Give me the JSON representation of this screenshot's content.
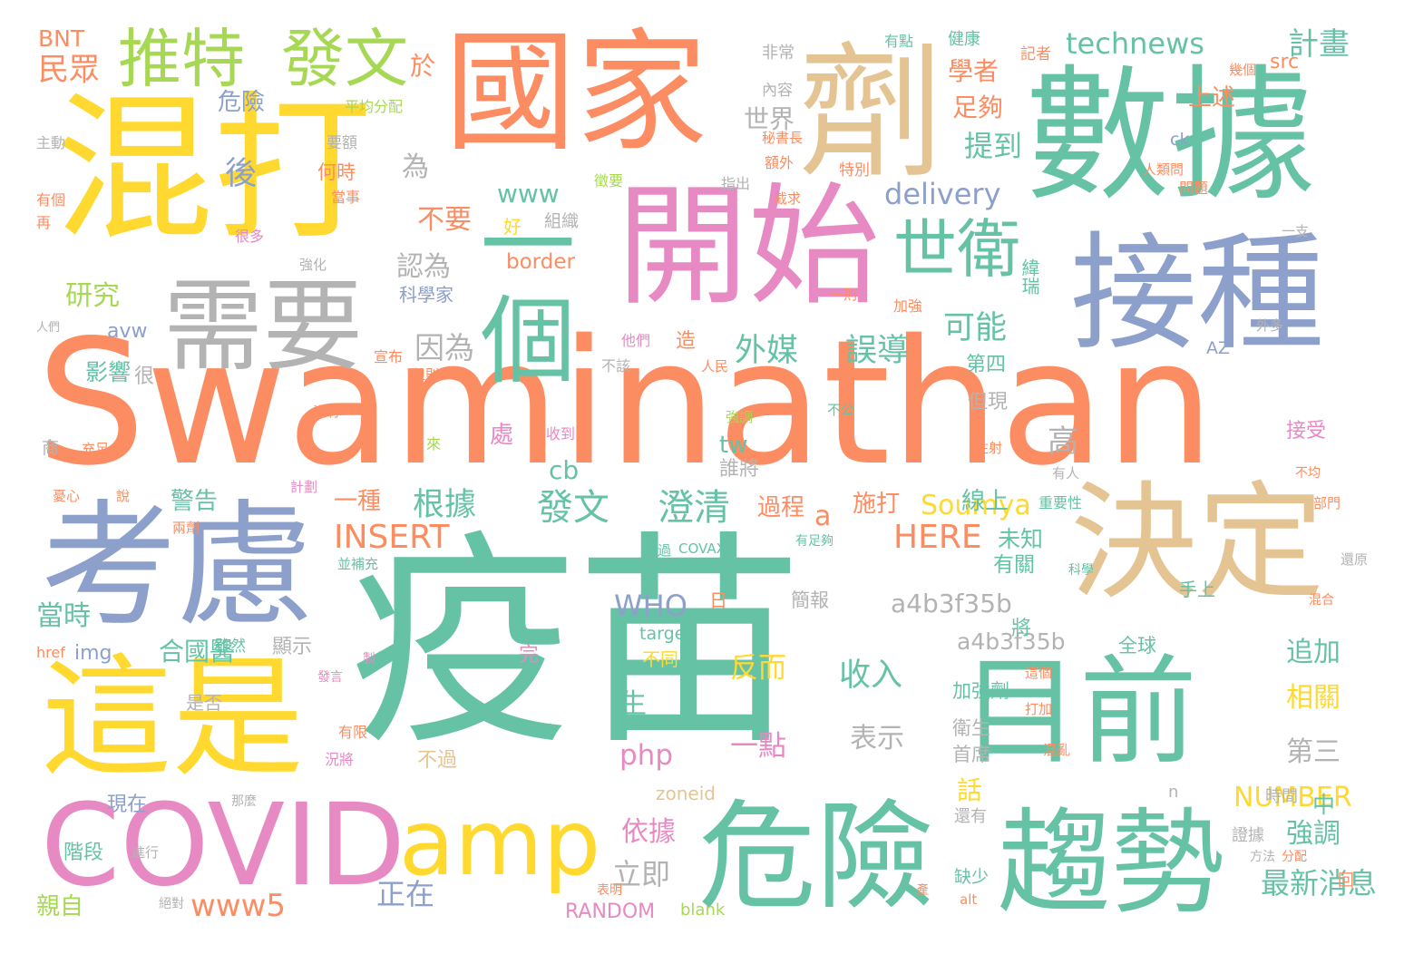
{
  "palette": {
    "green": "#66c2a5",
    "orange": "#fc8d62",
    "blue": "#8da0cb",
    "pink": "#e78ac3",
    "lime": "#a6d854",
    "yellow": "#ffd92f",
    "tan": "#e5c494",
    "gray": "#b3b3b3"
  },
  "words": [
    "Swaminathan",
    "疫苗",
    "國家",
    "數據",
    "混打",
    "開始",
    "接種",
    "一個",
    "考慮",
    "劑",
    "決定",
    "目前",
    "這是",
    "趨勢",
    "危險",
    "COVID",
    "需要",
    "amp",
    "世衛",
    "推特",
    "發文",
    "technews",
    "計畫",
    "民眾",
    "BNT",
    "於",
    "平均分配",
    "學者",
    "足夠",
    "上述",
    "src",
    "有點",
    "健康",
    "記者",
    "非常",
    "內容",
    "秘書長",
    "額外",
    "特別",
    "主動",
    "要額",
    "何時",
    "當事",
    "有個",
    "再",
    "很多",
    "強化",
    "後",
    "世界",
    "為",
    "提到",
    "delivery",
    "www",
    "不要",
    "好",
    "組織",
    "認為",
    "border",
    "科學家",
    "研究",
    "avw",
    "人們",
    "外媒",
    "誤導",
    "可能",
    "因為",
    "影響",
    "很",
    "緯瑞",
    "第四",
    "AZ",
    "外多",
    "造",
    "宣布",
    "但則",
    "不該",
    "人民",
    "他們",
    "一則",
    "加強",
    "危險",
    "ck",
    "人類問",
    "問題",
    "幾個",
    "一支",
    "指出",
    "徵要",
    "截求",
    "高",
    "但現",
    "接受",
    "處",
    "收到",
    "來",
    "商",
    "充足",
    "沒有",
    "注射",
    "強調",
    "不公",
    "誰將",
    "有人",
    "不均",
    "部門",
    "cb",
    "tw",
    "根據",
    "發文",
    "澄清",
    "一種",
    "Soumya",
    "過程",
    "施打",
    "線上",
    "重要性",
    "警告",
    "計劃",
    "說",
    "憂心",
    "兩劑",
    "INSERT",
    "a",
    "HERE",
    "未知",
    "有關",
    "科學",
    "並補充",
    "透過",
    "COVAX",
    "有足夠",
    "還原",
    "當時",
    "WHO",
    "日",
    "簡報",
    "a4b3f35b",
    "手上",
    "a4b3f35b",
    "將",
    "混合",
    "合國醫",
    "雖然",
    "顯示",
    "target",
    "不同",
    "img",
    "href",
    "完",
    "製",
    "發言",
    "反而",
    "收入",
    "追加",
    "是否",
    "生",
    "全球",
    "相關",
    "這個",
    "打加",
    "加強劑",
    "衛生",
    "首席",
    "一點",
    "表示",
    "php",
    "第三",
    "不過",
    "有限",
    "況將",
    "混亂",
    "現在",
    "zoneid",
    "話",
    "NUMBER",
    "中",
    "n",
    "時間",
    "那麼",
    "還有",
    "階段",
    "進行",
    "依據",
    "強調",
    "證據",
    "方法",
    "分配",
    "立即",
    "缺少",
    "正在",
    "最新消息",
    "親自",
    "www5",
    "RANDOM",
    "blank",
    "alt",
    "表明",
    "絕對",
    "回",
    "產",
    "附想"
  ]
}
